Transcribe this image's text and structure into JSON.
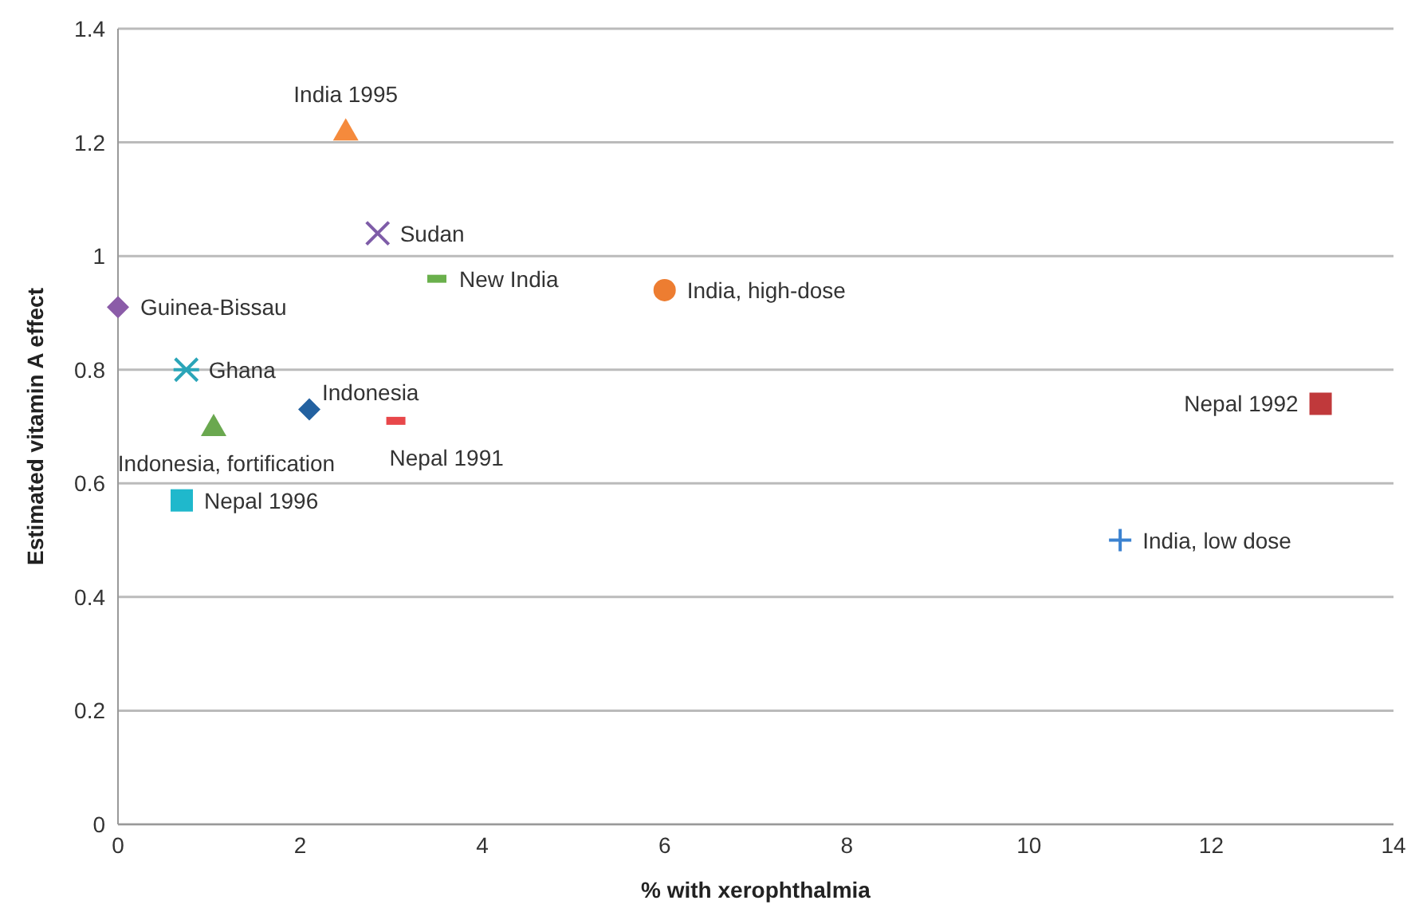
{
  "chart_data": {
    "type": "scatter",
    "xlabel": "% with xerophthalmia",
    "ylabel": "Estimated vitamin A effect",
    "xlim": [
      0,
      14
    ],
    "xticks": [
      0,
      2,
      4,
      6,
      8,
      10,
      12,
      14
    ],
    "ylim": [
      0,
      1.4
    ],
    "yticks": [
      0,
      0.2,
      0.4,
      0.6,
      0.8,
      1,
      1.2,
      1.4
    ],
    "grid": "y",
    "legend": false,
    "series": [
      {
        "name": "India 1995",
        "color": "#f58a3c",
        "marker": "triangle",
        "x": [
          2.5
        ],
        "values": [
          1.22
        ]
      },
      {
        "name": "Sudan",
        "color": "#7e5ca8",
        "marker": "cross",
        "x": [
          2.85
        ],
        "values": [
          1.04
        ]
      },
      {
        "name": "New India",
        "color": "#6ab04c",
        "marker": "square",
        "x": [
          3.5
        ],
        "values": [
          0.96
        ]
      },
      {
        "name": "India, high-dose",
        "color": "#ed7d31",
        "marker": "circle",
        "x": [
          6
        ],
        "values": [
          0.94
        ]
      },
      {
        "name": "Guinea-Bissau",
        "color": "#8b5ca8",
        "marker": "diamond",
        "x": [
          0
        ],
        "values": [
          0.91
        ]
      },
      {
        "name": "Ghana",
        "color": "#2aa5b8",
        "marker": "cross",
        "x": [
          0.75
        ],
        "values": [
          0.8
        ]
      },
      {
        "name": "Indonesia, fortification",
        "color": "#6aa84f",
        "marker": "triangle",
        "x": [
          1.05
        ],
        "values": [
          0.7
        ]
      },
      {
        "name": "Indonesia",
        "color": "#2361a0",
        "marker": "diamond",
        "x": [
          2.1
        ],
        "values": [
          0.73
        ]
      },
      {
        "name": "Nepal 1991",
        "color": "#e8474a",
        "marker": "square",
        "x": [
          3.05
        ],
        "values": [
          0.71
        ]
      },
      {
        "name": "Nepal 1996",
        "color": "#1fb8cc",
        "marker": "square",
        "x": [
          0.7
        ],
        "values": [
          0.57
        ]
      },
      {
        "name": "Nepal 1992",
        "color": "#c0393b",
        "marker": "square",
        "x": [
          13.2
        ],
        "values": [
          0.74
        ]
      },
      {
        "name": "India, low dose",
        "color": "#3b82d0",
        "marker": "cross",
        "x": [
          11
        ],
        "values": [
          0.5
        ]
      }
    ]
  }
}
